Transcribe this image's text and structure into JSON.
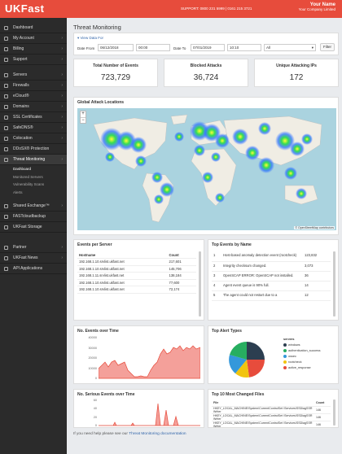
{
  "topbar": {
    "logo": "UKFast",
    "support": "SUPPORT: 0800 231 5999 | 0161 215 3721",
    "user_name": "Your Name",
    "company": "Your Company Limited",
    "accent": "#e74c3c"
  },
  "sidebar": {
    "items_top": [
      {
        "name": "sidebar-item-dashboard",
        "label": "Dashboard",
        "chev": false
      },
      {
        "name": "sidebar-item-my-account",
        "label": "My Account",
        "chev": true
      },
      {
        "name": "sidebar-item-billing",
        "label": "Billing",
        "chev": true
      },
      {
        "name": "sidebar-item-support",
        "label": "Support",
        "chev": true
      }
    ],
    "items_mid": [
      {
        "name": "sidebar-item-servers",
        "label": "Servers",
        "chev": true
      },
      {
        "name": "sidebar-item-firewalls",
        "label": "Firewalls",
        "chev": true
      },
      {
        "name": "sidebar-item-ecloud",
        "label": "eCloud®",
        "chev": true
      },
      {
        "name": "sidebar-item-domains",
        "label": "Domains",
        "chev": true
      },
      {
        "name": "sidebar-item-ssl",
        "label": "SSL Certificates",
        "chev": true
      },
      {
        "name": "sidebar-item-safedns",
        "label": "SafeDNS®",
        "chev": true
      },
      {
        "name": "sidebar-item-colocation",
        "label": "Colocation",
        "chev": true
      },
      {
        "name": "sidebar-item-ddosx",
        "label": "DDoSX® Protection",
        "chev": false
      },
      {
        "name": "sidebar-item-threat-monitoring",
        "label": "Threat Monitoring",
        "chev": true,
        "active": true
      }
    ],
    "sub": [
      "Dashboard",
      "Monitored Servers",
      "Vulnerability Scans",
      "Alerts"
    ],
    "items_low": [
      {
        "name": "sidebar-item-shared-exchange",
        "label": "Shared Exchange™",
        "chev": true
      },
      {
        "name": "sidebar-item-fastcloudbackup",
        "label": "FASTcloudbackup",
        "chev": false
      },
      {
        "name": "sidebar-item-ukfast-storage",
        "label": "UKFast Storage",
        "chev": false
      }
    ],
    "items_bottom": [
      {
        "name": "sidebar-item-partner",
        "label": "Partner",
        "chev": true
      },
      {
        "name": "sidebar-item-ukfast-news",
        "label": "UKFast News",
        "chev": true
      },
      {
        "name": "sidebar-item-api",
        "label": "API Applications",
        "chev": false
      }
    ]
  },
  "page": {
    "title": "Threat Monitoring"
  },
  "filter": {
    "view_data_for": "View Data For",
    "date_from_label": "Date From",
    "date_from": "06/12/2018",
    "time_from": "00:00",
    "date_to_label": "Date To",
    "date_to": "07/01/2019",
    "time_to": "10:10",
    "select": "All",
    "button": "Filter"
  },
  "stats": [
    {
      "label": "Total Number of Events",
      "value": "723,729"
    },
    {
      "label": "Blocked Attacks",
      "value": "36,724"
    },
    {
      "label": "Unique Attacking IPs",
      "value": "172"
    }
  ],
  "map": {
    "title": "Global Attack Locations",
    "zoom_in": "+",
    "zoom_out": "−",
    "attribution": "© OpenStreetMap contributors"
  },
  "events_per_server": {
    "title": "Events per Server",
    "headers": [
      "Hostname",
      "Count"
    ],
    "rows": [
      [
        "192.168.1.10.srvlist.ukfast.net",
        "217,601"
      ],
      [
        "192.168.1.10.srvlist.ukfast.net",
        "145,706"
      ],
      [
        "192.168.1.11.srvlist.ukfast.net",
        "138,184"
      ],
      [
        "192.168.1.10.srvlist.ukfast.net",
        "77,600"
      ],
      [
        "192.168.1.10.srvlist.ukfast.net",
        "72,174"
      ]
    ]
  },
  "top_events": {
    "title": "Top Events by Name",
    "rows": [
      [
        "1",
        "Host-based anomaly detection event (rootcheck)",
        "123,832"
      ],
      [
        "2",
        "Integrity checksum changed.",
        "3,073"
      ],
      [
        "3",
        "OpenSCAP ERROR: OpenSCAP not installed.",
        "36"
      ],
      [
        "4",
        "Agent event queue is 90% full.",
        "14"
      ],
      [
        "5",
        "The agent could not restart due to a",
        "12"
      ]
    ]
  },
  "events_over_time": {
    "title": "No. Events over Time",
    "yticks": [
      "40000",
      "30000",
      "20000",
      "10000",
      "0"
    ]
  },
  "alert_types": {
    "title": "Top Alert Types",
    "legend_title": "servers",
    "legend": [
      {
        "label": "windows",
        "color": "#2c3e50"
      },
      {
        "label": "authentication_success",
        "color": "#27ae60"
      },
      {
        "label": "ossec",
        "color": "#3498db"
      },
      {
        "label": "rootcheck",
        "color": "#f1c40f"
      },
      {
        "label": "active_response",
        "color": "#e74c3c"
      }
    ]
  },
  "serious_events": {
    "title": "No. Serious Events over Time",
    "yticks": [
      "60",
      "40",
      "20",
      "0"
    ]
  },
  "changed_files": {
    "title": "Top 10 Most Changed Files",
    "headers": [
      "File",
      "Count"
    ],
    "rows": [
      [
        "HKEY_LOCAL_MACHINE\\System\\CurrentControlSet \\Services\\SSDiagSSR Writer",
        "146"
      ],
      [
        "HKEY_LOCAL_MACHINE\\System\\CurrentControlSet \\Services\\SSDiagSSR Writer",
        "146"
      ],
      [
        "HKEY_LOCAL_MACHINE\\System\\CurrentControlSet \\Services\\SSDiagSSR Writer",
        "146"
      ]
    ]
  },
  "footer": {
    "text": "If you need help please see our",
    "link": "Threat Monitoring documentation"
  }
}
